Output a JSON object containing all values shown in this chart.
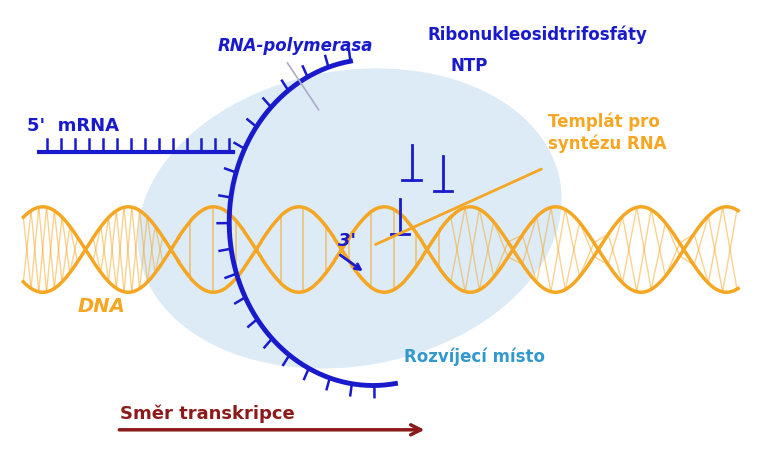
{
  "bg_color": "#ffffff",
  "bubble_color": "#d6e8f5",
  "dna_color": "#f5a623",
  "rna_color": "#1a1acd",
  "highlight_color": "#3399ff",
  "arrow_color": "#8b1a1a",
  "orange_label_color": "#f5a623",
  "blue_label_color": "#1a1acd",
  "cyan_label_color": "#3399cc",
  "texts": {
    "five_prime_mRNA": "5'  mRNA",
    "rna_polymerasa": "RNA-polymerasa",
    "ribonukleosid": "Ribonukleosidtrifosfáty",
    "ntp": "NTP",
    "templat": "Templát pro\nsyntézu RNA",
    "three_prime": "3'",
    "rozvijeci": "Rozvíjecí místo",
    "smer": "Směr transkripce",
    "dna": "DNA"
  },
  "figsize": [
    7.77,
    4.68
  ],
  "dpi": 100
}
